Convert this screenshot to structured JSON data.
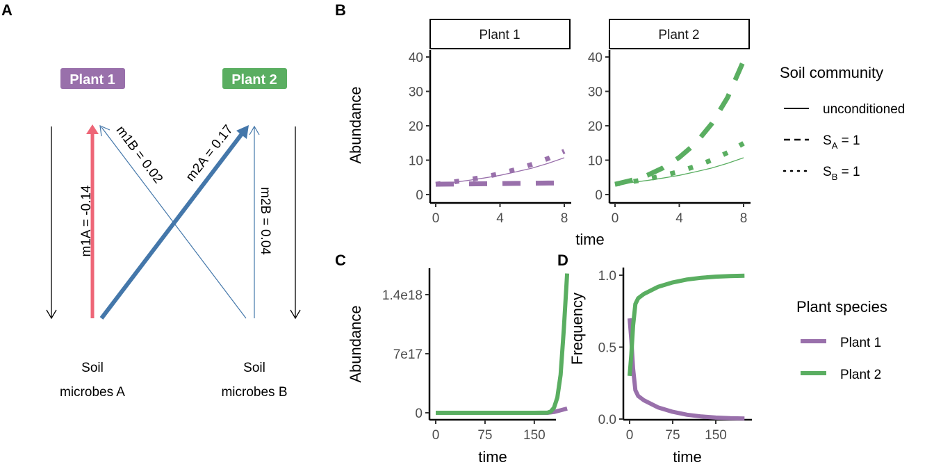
{
  "colors": {
    "plant1": "#9970AB",
    "plant2": "#5AAE61",
    "negative": "#EE6677",
    "positive": "#4477AA",
    "axis": "#000000",
    "tick_text": "#4d4d4d"
  },
  "panelA": {
    "label": "A",
    "plant1_badge": "Plant 1",
    "plant2_badge": "Plant 2",
    "soilA_line1": "Soil",
    "soilA_line2": "microbes A",
    "soilB_line1": "Soil",
    "soilB_line2": "microbes B",
    "edges": [
      {
        "name": "m1A",
        "label": "m1A = -0.14",
        "value": -0.14,
        "from": "Soil microbes A",
        "to": "Plant 1"
      },
      {
        "name": "m1B",
        "label": "m1B = 0.02",
        "value": 0.02,
        "from": "Soil microbes B",
        "to": "Plant 1"
      },
      {
        "name": "m2A",
        "label": "m2A = 0.17",
        "value": 0.17,
        "from": "Soil microbes A",
        "to": "Plant 2"
      },
      {
        "name": "m2B",
        "label": "m2B = 0.04",
        "value": 0.04,
        "from": "Soil microbes B",
        "to": "Plant 2"
      }
    ]
  },
  "chart_data": [
    {
      "id": "B",
      "type": "line",
      "panel_label": "B",
      "facets": [
        "Plant 1",
        "Plant 2"
      ],
      "xlabel": "time",
      "ylabel": "Abundance",
      "xlim": [
        0,
        8
      ],
      "ylim": [
        0,
        40
      ],
      "xticks": [
        0,
        4,
        8
      ],
      "yticks": [
        0,
        10,
        20,
        30,
        40
      ],
      "legend": {
        "title": "Soil community",
        "position": "right",
        "entries": [
          {
            "label": "unconditioned",
            "linetype": "solid"
          },
          {
            "label": "S",
            "sub": "A",
            "suffix": " = 1",
            "linetype": "dashed"
          },
          {
            "label": "S",
            "sub": "B",
            "suffix": " = 1",
            "linetype": "dotted"
          }
        ]
      },
      "series": [
        {
          "facet": "Plant 1",
          "name": "unconditioned",
          "linetype": "solid",
          "x": [
            0,
            1,
            2,
            3,
            4,
            5,
            6,
            7,
            8
          ],
          "values": [
            3.0,
            3.5,
            4.1,
            4.8,
            5.6,
            6.6,
            7.7,
            9.1,
            10.7
          ]
        },
        {
          "facet": "Plant 1",
          "name": "S_A = 1",
          "linetype": "dashed",
          "x": [
            0,
            1,
            2,
            3,
            4,
            5,
            6,
            7,
            8
          ],
          "values": [
            3.0,
            3.05,
            3.1,
            3.15,
            3.2,
            3.25,
            3.3,
            3.35,
            3.4
          ]
        },
        {
          "facet": "Plant 1",
          "name": "S_B = 1",
          "linetype": "dotted",
          "x": [
            0,
            1,
            2,
            3,
            4,
            5,
            6,
            7,
            8
          ],
          "values": [
            3.0,
            3.6,
            4.3,
            5.1,
            6.1,
            7.3,
            8.8,
            10.5,
            12.6
          ]
        },
        {
          "facet": "Plant 2",
          "name": "unconditioned",
          "linetype": "solid",
          "x": [
            0,
            1,
            2,
            3,
            4,
            5,
            6,
            7,
            8
          ],
          "values": [
            3.0,
            3.5,
            4.1,
            4.8,
            5.6,
            6.6,
            7.7,
            9.1,
            10.7
          ]
        },
        {
          "facet": "Plant 2",
          "name": "S_A = 1",
          "linetype": "dashed",
          "x": [
            0,
            1,
            2,
            3,
            4,
            5,
            6,
            7,
            8
          ],
          "values": [
            3.0,
            4.1,
            5.6,
            7.8,
            10.8,
            14.8,
            20.5,
            28.2,
            38.9
          ]
        },
        {
          "facet": "Plant 2",
          "name": "S_B = 1",
          "linetype": "dotted",
          "x": [
            0,
            1,
            2,
            3,
            4,
            5,
            6,
            7,
            8
          ],
          "values": [
            3.0,
            3.7,
            4.5,
            5.5,
            6.7,
            8.2,
            10.0,
            12.2,
            14.9
          ]
        }
      ]
    },
    {
      "id": "C",
      "type": "line",
      "panel_label": "C",
      "xlabel": "time",
      "ylabel": "Abundance",
      "xlim": [
        0,
        200
      ],
      "ylim": [
        0,
        1.7e+18
      ],
      "xticks": [
        0,
        75,
        150
      ],
      "yticks": [
        0,
        7e+17,
        1.4e+18
      ],
      "ytick_labels": [
        "0",
        "7e17",
        "1.4e18"
      ],
      "series": [
        {
          "name": "Plant 1",
          "x": [
            0,
            150,
            170,
            180,
            190,
            200
          ],
          "values": [
            0,
            0,
            0,
            1e+16,
            3e+16,
            5e+16
          ]
        },
        {
          "name": "Plant 2",
          "x": [
            0,
            150,
            170,
            175,
            180,
            185,
            190,
            195,
            200
          ],
          "values": [
            0,
            0,
            2000000000000000.0,
            1.5e+16,
            6e+16,
            1.8e+17,
            4.5e+17,
            1e+18,
            1.65e+18
          ]
        }
      ]
    },
    {
      "id": "D",
      "type": "line",
      "panel_label": "D",
      "xlabel": "time",
      "ylabel": "Frequency",
      "xlim": [
        0,
        200
      ],
      "ylim": [
        0,
        1.0
      ],
      "xticks": [
        0,
        75,
        150
      ],
      "yticks": [
        0.0,
        0.5,
        1.0
      ],
      "ytick_labels": [
        "0.0",
        "0.5",
        "1.0"
      ],
      "legend": {
        "title": "Plant species",
        "position": "right",
        "entries": [
          "Plant 1",
          "Plant 2"
        ]
      },
      "series": [
        {
          "name": "Plant 1",
          "x": [
            0,
            3,
            6,
            10,
            15,
            25,
            50,
            75,
            100,
            125,
            150,
            175,
            200
          ],
          "values": [
            0.7,
            0.55,
            0.35,
            0.2,
            0.16,
            0.13,
            0.08,
            0.05,
            0.03,
            0.018,
            0.01,
            0.006,
            0.004
          ]
        },
        {
          "name": "Plant 2",
          "x": [
            0,
            3,
            6,
            10,
            15,
            25,
            50,
            75,
            100,
            125,
            150,
            175,
            200
          ],
          "values": [
            0.3,
            0.45,
            0.65,
            0.8,
            0.84,
            0.87,
            0.92,
            0.95,
            0.97,
            0.982,
            0.99,
            0.994,
            0.996
          ]
        }
      ]
    }
  ]
}
